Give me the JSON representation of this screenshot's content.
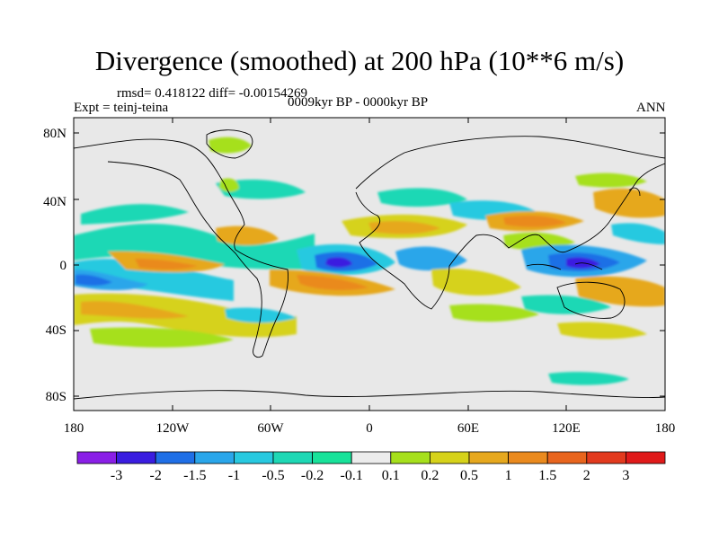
{
  "title": "Divergence (smoothed) at 200 hPa (10**6 m/s)",
  "stats": "rmsd= 0.418122 diff= -0.00154269",
  "experiment": "Expt = teinj-teina",
  "period": "0009kyr BP - 0000kyr BP",
  "season": "ANN",
  "lat_labels": [
    "80N",
    "40N",
    "0",
    "40S",
    "80S"
  ],
  "lon_labels": [
    "180",
    "120W",
    "60W",
    "0",
    "60E",
    "120E",
    "180"
  ],
  "colorbar": {
    "labels": [
      "-3",
      "-2",
      "-1.5",
      "-1",
      "-0.5",
      "-0.2",
      "-0.1",
      "0.1",
      "0.2",
      "0.5",
      "1",
      "1.5",
      "2",
      "3"
    ],
    "colors": [
      "#8a1fe6",
      "#3a1de0",
      "#1f6fe6",
      "#2aa6ea",
      "#28c9e0",
      "#1ed8b5",
      "#18e29a",
      "#ececec",
      "#a6e01c",
      "#d6d21a",
      "#e6a81e",
      "#ea8a1e",
      "#e8651e",
      "#e23a1e",
      "#e01a1a"
    ]
  },
  "colors": {
    "background": "#e8e8e8",
    "coast": "#000000"
  }
}
